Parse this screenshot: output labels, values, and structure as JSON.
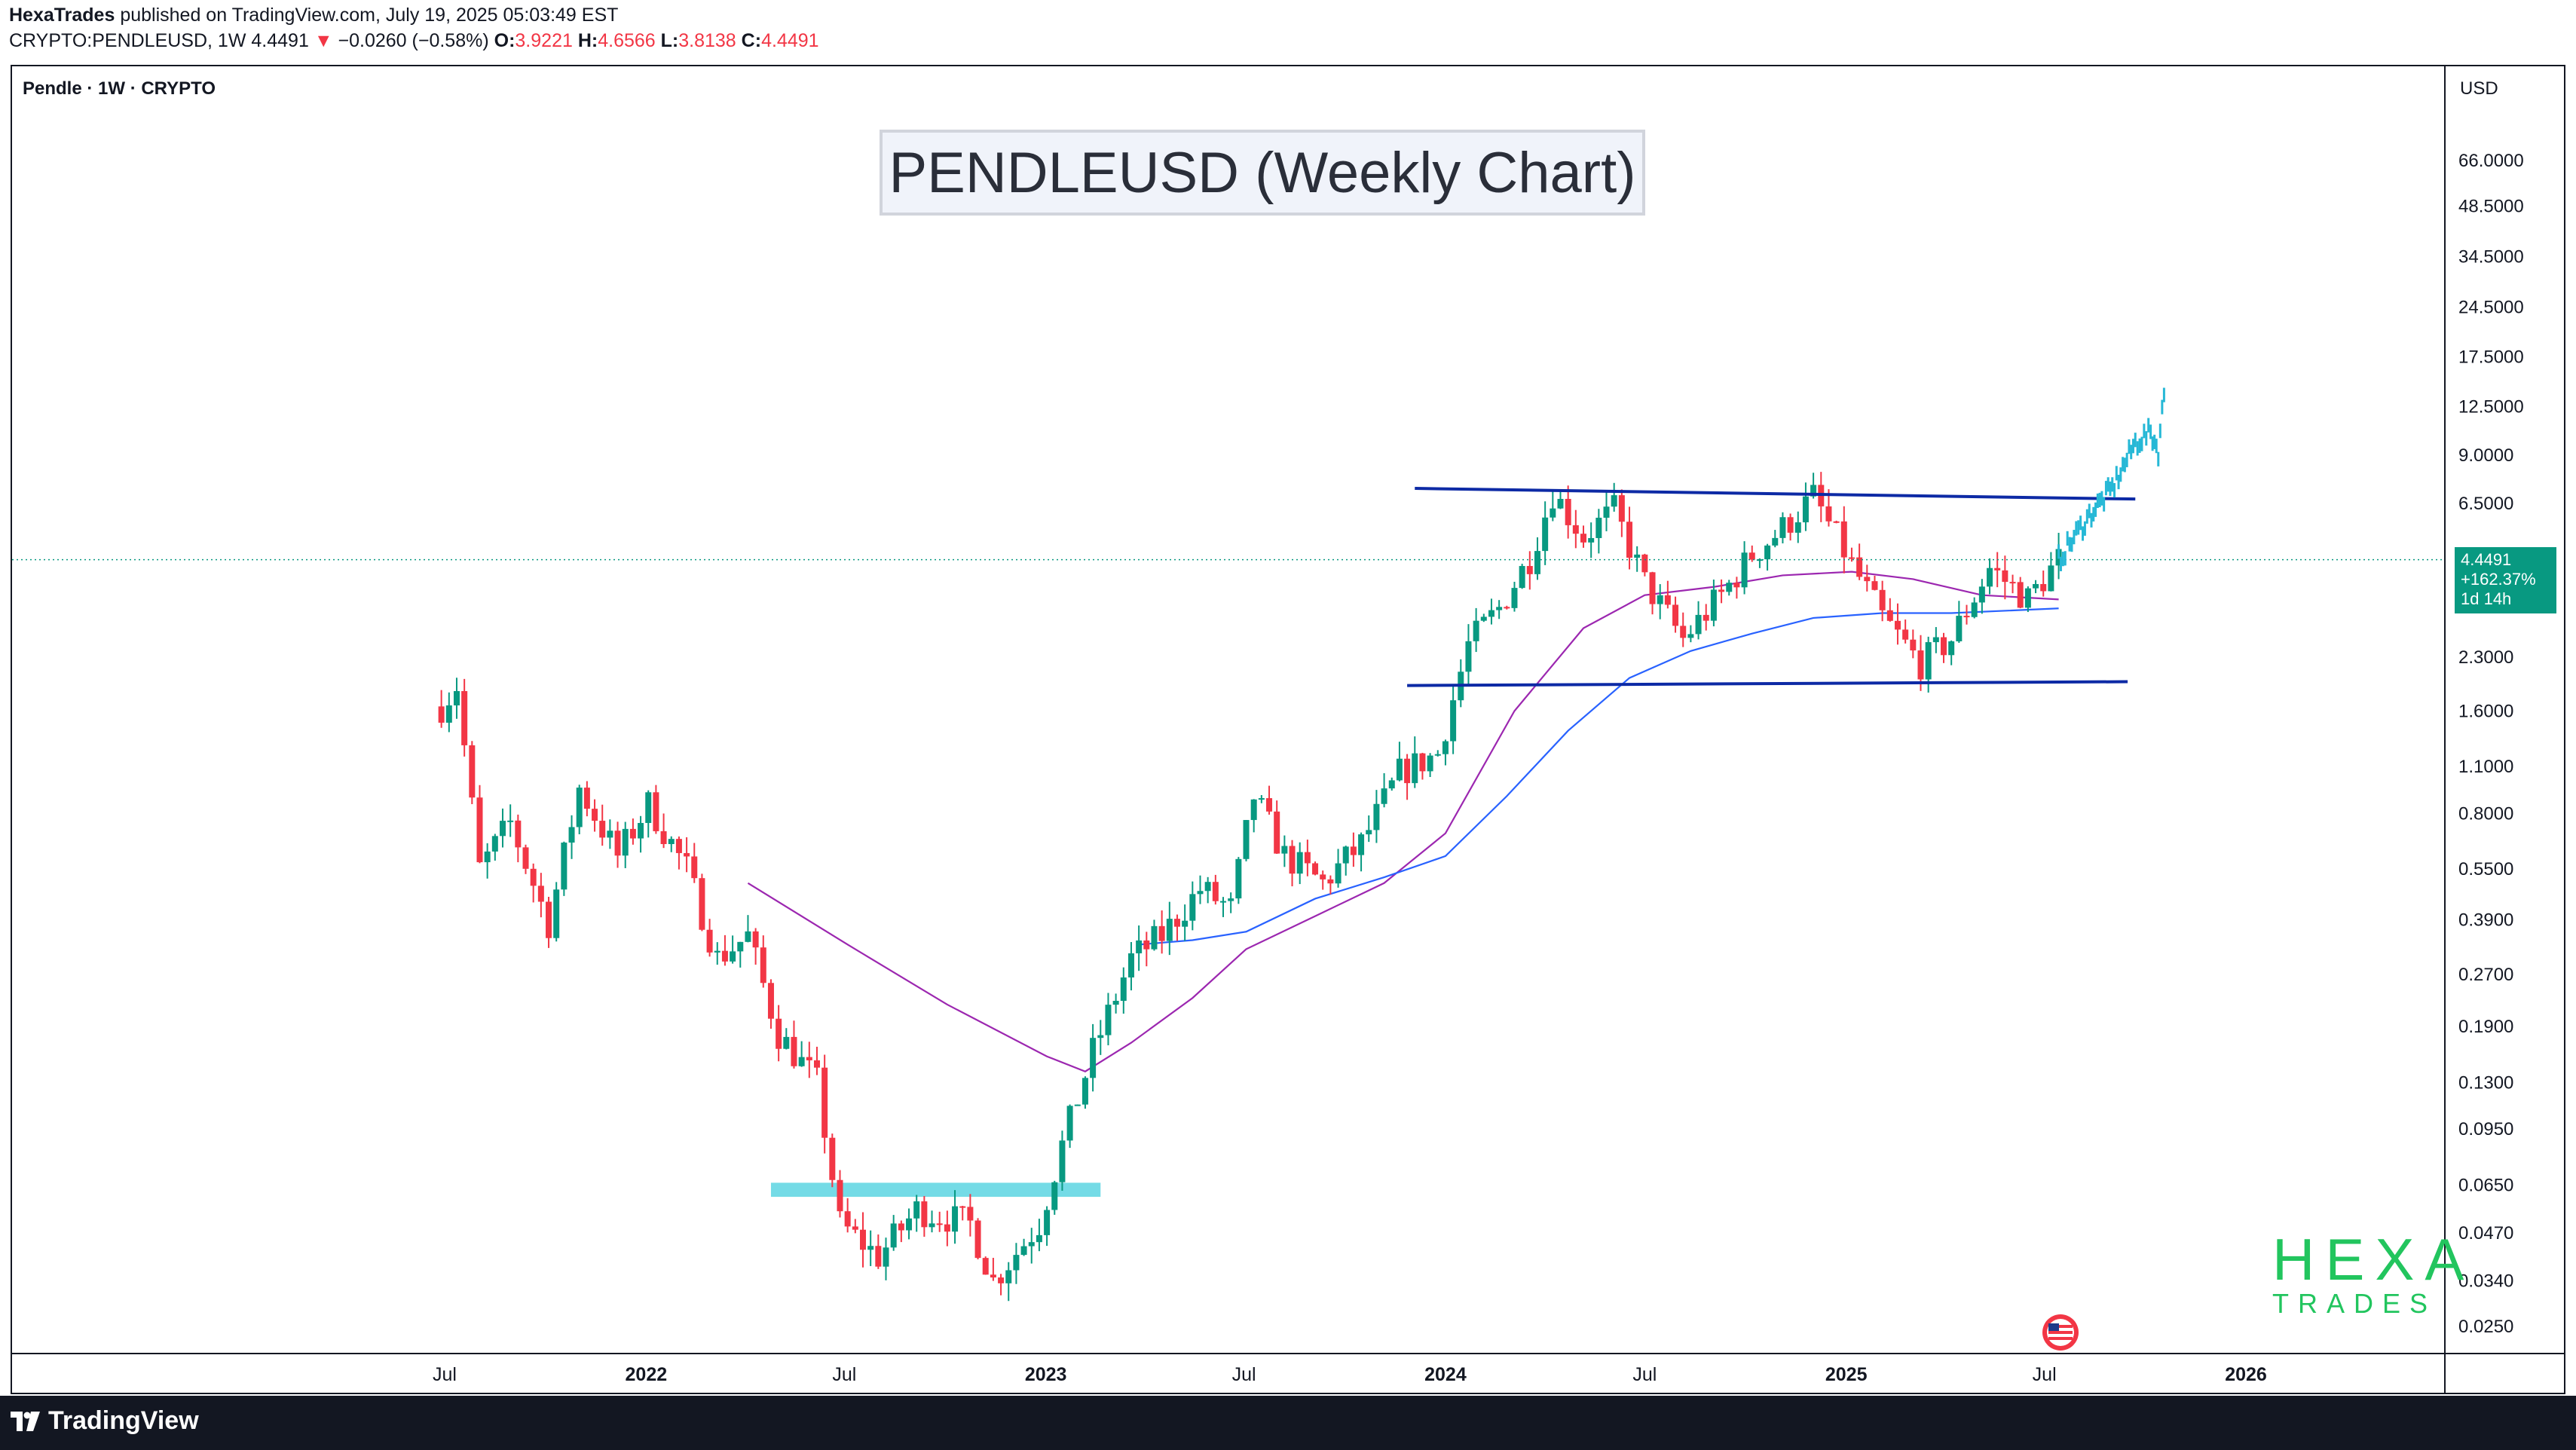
{
  "header": {
    "author": "HexaTrades",
    "published_text": " published on TradingView.com, July 19, 2025 05:03:49 EST",
    "symbol": "CRYPTO:PENDLEUSD, 1W",
    "last": "4.4491",
    "arrow": "▼",
    "change": "−0.0260 (−0.58%)",
    "o_label": "O:",
    "o_value": "3.9221",
    "h_label": "H:",
    "h_value": "4.6566",
    "l_label": "L:",
    "l_value": "3.8138",
    "c_label": "C:",
    "c_value": "4.4491"
  },
  "pane": {
    "symbol_label": "Pendle · 1W · CRYPTO",
    "currency": "USD"
  },
  "price_tag": {
    "price": "4.4491",
    "change": "+162.37%",
    "countdown": "1d 14h"
  },
  "watermark": {
    "line1": "HEXA",
    "line2": "TRADES"
  },
  "footer": {
    "brand": "TradingView"
  },
  "colors": {
    "up": "#089981",
    "down": "#f23645",
    "ma_fast": "#9c27b0",
    "ma_slow": "#2962ff",
    "trendline": "#0d2aa5",
    "zone": "#74dbe6",
    "projection": "#26b8d6",
    "watermark": "#22c55e"
  },
  "chart_data": {
    "type": "candlestick",
    "title": "PENDLEUSD (Weekly Chart)",
    "yscale": "log",
    "ylim": [
      0.022,
      88
    ],
    "xlim": [
      "2021-03-01",
      "2026-06-15"
    ],
    "y_ticks": [
      "66.0000",
      "48.5000",
      "34.5000",
      "24.5000",
      "17.5000",
      "12.5000",
      "9.0000",
      "6.5000",
      "2.3000",
      "1.6000",
      "1.1000",
      "0.8000",
      "0.5500",
      "0.3900",
      "0.2700",
      "0.1900",
      "0.1300",
      "0.0950",
      "0.0650",
      "0.0470",
      "0.0340",
      "0.0250"
    ],
    "x_ticks": [
      {
        "date": "2021-07-01",
        "label": "Jul"
      },
      {
        "date": "2022-01-01",
        "label": "2022"
      },
      {
        "date": "2022-07-01",
        "label": "Jul"
      },
      {
        "date": "2023-01-01",
        "label": "2023"
      },
      {
        "date": "2023-07-01",
        "label": "Jul"
      },
      {
        "date": "2024-01-01",
        "label": "2024"
      },
      {
        "date": "2024-07-01",
        "label": "Jul"
      },
      {
        "date": "2025-01-01",
        "label": "2025"
      },
      {
        "date": "2025-07-01",
        "label": "Jul"
      },
      {
        "date": "2026-01-01",
        "label": "2026"
      }
    ],
    "path_anchors": [
      [
        "2021-06-28",
        1.65
      ],
      [
        "2021-07-12",
        1.9
      ],
      [
        "2021-08-02",
        0.55
      ],
      [
        "2021-08-30",
        0.75
      ],
      [
        "2021-10-04",
        0.38
      ],
      [
        "2021-11-01",
        0.95
      ],
      [
        "2021-12-06",
        0.6
      ],
      [
        "2022-01-03",
        0.85
      ],
      [
        "2022-02-07",
        0.55
      ],
      [
        "2022-03-07",
        0.3
      ],
      [
        "2022-04-04",
        0.35
      ],
      [
        "2022-05-02",
        0.18
      ],
      [
        "2022-06-06",
        0.13
      ],
      [
        "2022-06-27",
        0.05
      ],
      [
        "2022-08-01",
        0.04
      ],
      [
        "2022-09-05",
        0.055
      ],
      [
        "2022-10-24",
        0.05
      ],
      [
        "2022-11-14",
        0.034
      ],
      [
        "2022-12-26",
        0.05
      ],
      [
        "2023-01-16",
        0.085
      ],
      [
        "2023-02-13",
        0.16
      ],
      [
        "2023-03-20",
        0.3
      ],
      [
        "2023-04-17",
        0.35
      ],
      [
        "2023-05-22",
        0.48
      ],
      [
        "2023-06-19",
        0.42
      ],
      [
        "2023-07-10",
        0.9
      ],
      [
        "2023-08-07",
        0.6
      ],
      [
        "2023-09-11",
        0.5
      ],
      [
        "2023-10-16",
        0.65
      ],
      [
        "2023-11-20",
        1.05
      ],
      [
        "2023-12-25",
        1.2
      ],
      [
        "2024-01-22",
        2.5
      ],
      [
        "2024-02-19",
        3.2
      ],
      [
        "2024-03-18",
        4.5
      ],
      [
        "2024-04-08",
        7.0
      ],
      [
        "2024-05-06",
        5.2
      ],
      [
        "2024-06-03",
        6.2
      ],
      [
        "2024-07-01",
        3.8
      ],
      [
        "2024-08-05",
        2.6
      ],
      [
        "2024-09-09",
        3.5
      ],
      [
        "2024-10-07",
        4.6
      ],
      [
        "2024-11-04",
        5.5
      ],
      [
        "2024-12-02",
        6.8
      ],
      [
        "2025-01-06",
        4.3
      ],
      [
        "2025-02-03",
        3.0
      ],
      [
        "2025-03-10",
        2.2
      ],
      [
        "2025-04-07",
        2.6
      ],
      [
        "2025-05-12",
        4.2
      ],
      [
        "2025-06-16",
        3.4
      ],
      [
        "2025-07-14",
        4.45
      ]
    ],
    "series": [
      {
        "name": "MA fast",
        "points": [
          [
            "2022-04-04",
            0.5
          ],
          [
            "2022-07-04",
            0.33
          ],
          [
            "2022-10-03",
            0.22
          ],
          [
            "2023-01-02",
            0.155
          ],
          [
            "2023-02-06",
            0.14
          ],
          [
            "2023-03-20",
            0.17
          ],
          [
            "2023-05-15",
            0.23
          ],
          [
            "2023-07-03",
            0.32
          ],
          [
            "2023-09-04",
            0.4
          ],
          [
            "2023-11-06",
            0.5
          ],
          [
            "2024-01-01",
            0.7
          ],
          [
            "2024-03-04",
            1.6
          ],
          [
            "2024-05-06",
            2.8
          ],
          [
            "2024-07-01",
            3.5
          ],
          [
            "2024-09-02",
            3.7
          ],
          [
            "2024-11-04",
            4.0
          ],
          [
            "2025-01-06",
            4.1
          ],
          [
            "2025-03-03",
            3.9
          ],
          [
            "2025-05-05",
            3.5
          ],
          [
            "2025-07-14",
            3.4
          ]
        ]
      },
      {
        "name": "MA slow",
        "points": [
          [
            "2023-03-27",
            0.33
          ],
          [
            "2023-05-15",
            0.34
          ],
          [
            "2023-07-03",
            0.36
          ],
          [
            "2023-09-04",
            0.45
          ],
          [
            "2023-11-06",
            0.52
          ],
          [
            "2024-01-01",
            0.6
          ],
          [
            "2024-02-26",
            0.9
          ],
          [
            "2024-04-22",
            1.4
          ],
          [
            "2024-06-17",
            2.0
          ],
          [
            "2024-08-12",
            2.4
          ],
          [
            "2024-10-07",
            2.7
          ],
          [
            "2024-12-02",
            3.0
          ],
          [
            "2025-02-03",
            3.1
          ],
          [
            "2025-04-07",
            3.1
          ],
          [
            "2025-07-14",
            3.2
          ]
        ]
      }
    ],
    "annotations": {
      "resistance_line": [
        [
          "2023-12-04",
          7.2
        ],
        [
          "2025-09-22",
          6.7
        ]
      ],
      "support_line": [
        [
          "2023-11-27",
          1.9
        ],
        [
          "2025-09-15",
          1.95
        ]
      ],
      "accumulation_zone": {
        "from": "2022-04-25",
        "to": "2023-02-20",
        "low": 0.06,
        "high": 0.066
      },
      "projection": [
        [
          "2025-07-14",
          4.45
        ],
        [
          "2025-08-11",
          6.0
        ],
        [
          "2025-09-01",
          7.2
        ],
        [
          "2025-09-22",
          9.8
        ],
        [
          "2025-10-06",
          10.5
        ],
        [
          "2025-10-13",
          9.3
        ],
        [
          "2025-10-20",
          15.5
        ]
      ],
      "last_price": 4.4491
    }
  }
}
